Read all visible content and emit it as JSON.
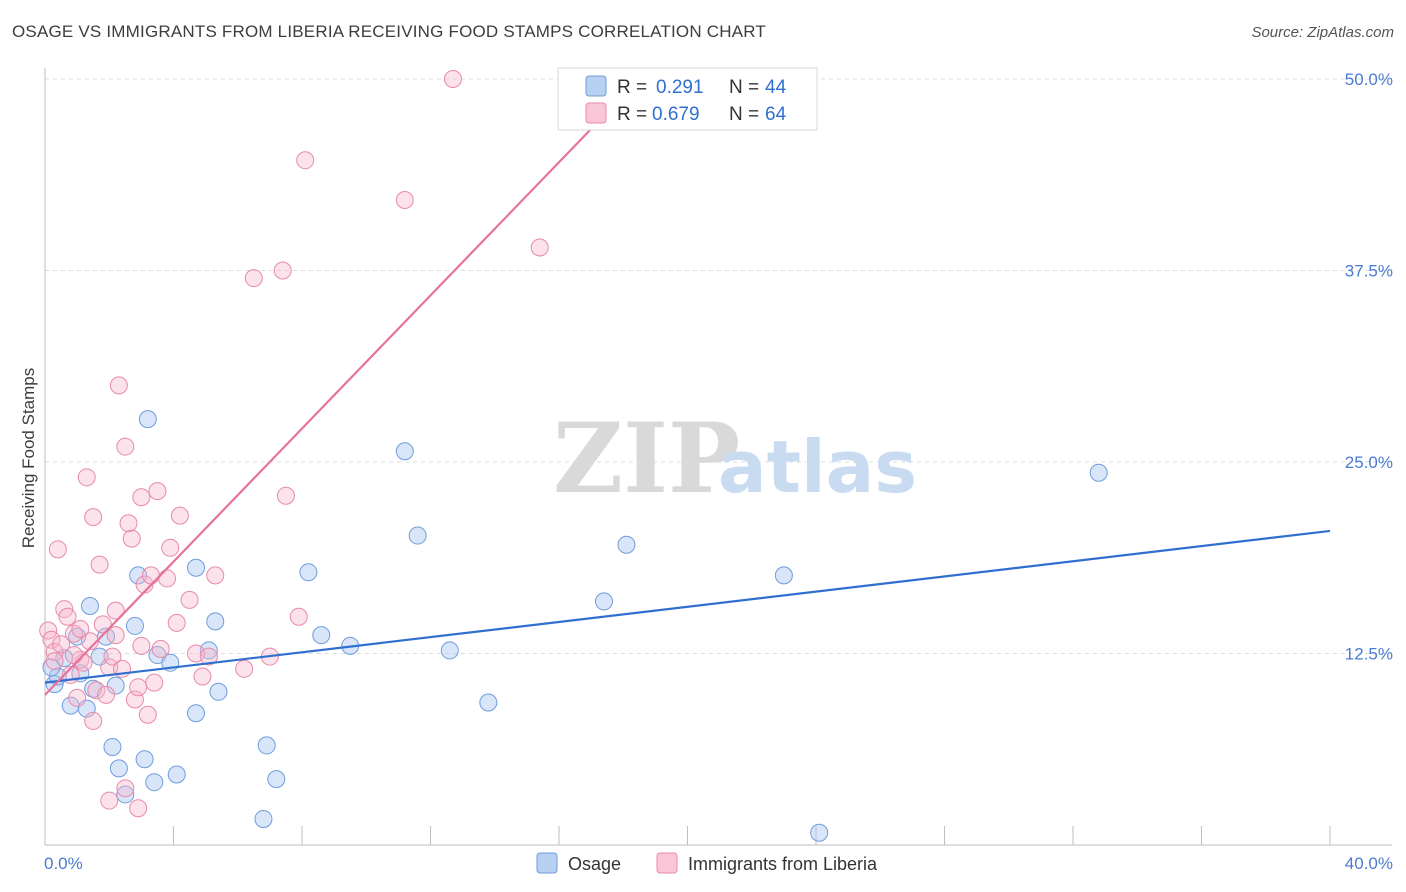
{
  "header": {
    "title": "OSAGE VS IMMIGRANTS FROM LIBERIA RECEIVING FOOD STAMPS CORRELATION CHART",
    "source": "Source: ZipAtlas.com"
  },
  "watermark": {
    "zip": "ZIP",
    "atlas": "atlas"
  },
  "legend": {
    "rows": [
      {
        "r_label": "R = ",
        "r_value": "0.291",
        "n_label": "N = ",
        "n_value": "44"
      },
      {
        "r_label": "R = ",
        "r_value": "0.679",
        "n_label": "N = ",
        "n_value": "64"
      }
    ]
  },
  "bottom_legend": {
    "items": [
      "Osage",
      "Immigrants from Liberia"
    ]
  },
  "chart_data": {
    "type": "scatter",
    "title": "OSAGE VS IMMIGRANTS FROM LIBERIA RECEIVING FOOD STAMPS CORRELATION CHART",
    "xlabel": "",
    "ylabel": "Receiving Food Stamps",
    "xlim": [
      0,
      40
    ],
    "ylim": [
      0,
      50
    ],
    "x_ticks": [
      "0.0%",
      "40.0%"
    ],
    "y_ticks": [
      {
        "value": 12.5,
        "label": "12.5%"
      },
      {
        "value": 25.0,
        "label": "25.0%"
      },
      {
        "value": 37.5,
        "label": "37.5%"
      },
      {
        "value": 50.0,
        "label": "50.0%"
      }
    ],
    "grid": "horizontal-dashed",
    "legend_position": "top-center",
    "colors": {
      "osage": "#4a86d8",
      "liberia": "#e8739a"
    },
    "series": [
      {
        "name": "Osage",
        "r": 0.291,
        "n": 44,
        "trend": [
          [
            0,
            10.6
          ],
          [
            40,
            20.5
          ]
        ],
        "points": [
          [
            0.3,
            10.5
          ],
          [
            0.4,
            11.0
          ],
          [
            0.6,
            12.2
          ],
          [
            0.8,
            9.1
          ],
          [
            1.0,
            13.6
          ],
          [
            1.1,
            11.2
          ],
          [
            1.3,
            8.9
          ],
          [
            1.4,
            15.6
          ],
          [
            1.5,
            10.2
          ],
          [
            1.7,
            12.3
          ],
          [
            1.9,
            13.6
          ],
          [
            2.1,
            6.4
          ],
          [
            2.2,
            10.4
          ],
          [
            2.3,
            5.0
          ],
          [
            2.5,
            3.3
          ],
          [
            2.8,
            14.3
          ],
          [
            2.9,
            17.6
          ],
          [
            3.1,
            5.6
          ],
          [
            3.2,
            27.8
          ],
          [
            3.4,
            4.1
          ],
          [
            3.5,
            12.4
          ],
          [
            3.9,
            11.9
          ],
          [
            4.1,
            4.6
          ],
          [
            4.7,
            8.6
          ],
          [
            4.7,
            18.1
          ],
          [
            5.1,
            12.7
          ],
          [
            5.3,
            14.6
          ],
          [
            5.4,
            10.0
          ],
          [
            6.8,
            1.7
          ],
          [
            6.9,
            6.5
          ],
          [
            7.2,
            4.3
          ],
          [
            8.2,
            17.8
          ],
          [
            8.6,
            13.7
          ],
          [
            9.5,
            13.0
          ],
          [
            11.2,
            25.7
          ],
          [
            11.6,
            20.2
          ],
          [
            12.6,
            12.7
          ],
          [
            13.8,
            9.3
          ],
          [
            17.4,
            15.9
          ],
          [
            18.1,
            19.6
          ],
          [
            23.0,
            17.6
          ],
          [
            24.1,
            0.8
          ],
          [
            32.8,
            24.3
          ],
          [
            0.2,
            11.6
          ]
        ]
      },
      {
        "name": "Immigrants from Liberia",
        "r": 0.679,
        "n": 64,
        "trend": [
          [
            0,
            9.8
          ],
          [
            18.5,
            50.0
          ]
        ],
        "points": [
          [
            0.1,
            14.0
          ],
          [
            0.2,
            13.4
          ],
          [
            0.3,
            12.6
          ],
          [
            0.4,
            19.3
          ],
          [
            0.5,
            13.1
          ],
          [
            0.6,
            15.4
          ],
          [
            0.7,
            14.9
          ],
          [
            0.8,
            11.1
          ],
          [
            0.9,
            13.8
          ],
          [
            1.0,
            9.6
          ],
          [
            1.1,
            12.1
          ],
          [
            1.2,
            11.9
          ],
          [
            1.3,
            24.0
          ],
          [
            1.4,
            13.3
          ],
          [
            1.5,
            21.4
          ],
          [
            1.6,
            10.1
          ],
          [
            1.7,
            18.3
          ],
          [
            1.8,
            14.4
          ],
          [
            1.9,
            9.8
          ],
          [
            2.0,
            11.6
          ],
          [
            2.1,
            12.3
          ],
          [
            2.2,
            13.7
          ],
          [
            2.3,
            30.0
          ],
          [
            2.4,
            11.5
          ],
          [
            2.5,
            26.0
          ],
          [
            2.6,
            21.0
          ],
          [
            2.7,
            20.0
          ],
          [
            2.8,
            9.5
          ],
          [
            2.9,
            10.3
          ],
          [
            3.0,
            22.7
          ],
          [
            3.1,
            17.0
          ],
          [
            3.2,
            8.5
          ],
          [
            3.3,
            17.6
          ],
          [
            3.4,
            10.6
          ],
          [
            3.5,
            23.1
          ],
          [
            3.6,
            12.8
          ],
          [
            3.8,
            17.4
          ],
          [
            3.9,
            19.4
          ],
          [
            4.1,
            14.5
          ],
          [
            4.2,
            21.5
          ],
          [
            4.5,
            16.0
          ],
          [
            4.7,
            12.5
          ],
          [
            4.9,
            11.0
          ],
          [
            5.1,
            12.3
          ],
          [
            5.3,
            17.6
          ],
          [
            6.2,
            11.5
          ],
          [
            6.5,
            37.0
          ],
          [
            7.0,
            12.3
          ],
          [
            7.4,
            37.5
          ],
          [
            7.5,
            22.8
          ],
          [
            7.9,
            14.9
          ],
          [
            8.1,
            44.7
          ],
          [
            11.2,
            42.1
          ],
          [
            12.7,
            50.0
          ],
          [
            15.4,
            39.0
          ],
          [
            2.0,
            2.9
          ],
          [
            2.5,
            3.7
          ],
          [
            2.9,
            2.4
          ],
          [
            1.5,
            8.1
          ],
          [
            0.9,
            12.4
          ],
          [
            1.1,
            14.1
          ],
          [
            0.3,
            12.0
          ],
          [
            2.2,
            15.3
          ],
          [
            3.0,
            13.0
          ]
        ]
      }
    ]
  }
}
